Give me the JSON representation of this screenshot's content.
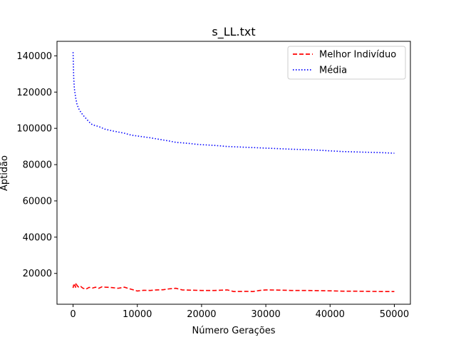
{
  "chart_data": {
    "type": "line",
    "title": "s_LL.txt",
    "xlabel": "Número Gerações",
    "ylabel": "Aptidão",
    "xlim": [
      -2500,
      52500
    ],
    "ylim": [
      3000,
      148000
    ],
    "xticks": [
      0,
      10000,
      20000,
      30000,
      40000,
      50000
    ],
    "yticks": [
      20000,
      40000,
      60000,
      80000,
      100000,
      120000,
      140000
    ],
    "grid": false,
    "legend_position": "top-right",
    "series": [
      {
        "name": "Melhor Indivíduo",
        "color": "#ff0000",
        "style": "dashed",
        "points": [
          [
            0,
            12000
          ],
          [
            100,
            13800
          ],
          [
            200,
            12600
          ],
          [
            300,
            13500
          ],
          [
            400,
            12200
          ],
          [
            500,
            14000
          ],
          [
            700,
            13000
          ],
          [
            900,
            12300
          ],
          [
            1200,
            12800
          ],
          [
            1500,
            11900
          ],
          [
            2000,
            11300
          ],
          [
            2500,
            12300
          ],
          [
            3000,
            11900
          ],
          [
            3500,
            12400
          ],
          [
            4000,
            11800
          ],
          [
            4500,
            12600
          ],
          [
            5000,
            12400
          ],
          [
            6000,
            12200
          ],
          [
            7000,
            11800
          ],
          [
            8000,
            12400
          ],
          [
            9000,
            11300
          ],
          [
            10000,
            10300
          ],
          [
            11000,
            10700
          ],
          [
            12000,
            10600
          ],
          [
            13000,
            10900
          ],
          [
            14000,
            11000
          ],
          [
            15000,
            11500
          ],
          [
            16000,
            11800
          ],
          [
            17000,
            10900
          ],
          [
            18000,
            10800
          ],
          [
            20000,
            10600
          ],
          [
            22000,
            10600
          ],
          [
            24000,
            10900
          ],
          [
            25000,
            10000
          ],
          [
            27000,
            10100
          ],
          [
            28000,
            10000
          ],
          [
            29000,
            10600
          ],
          [
            30000,
            10900
          ],
          [
            32000,
            10800
          ],
          [
            34000,
            10600
          ],
          [
            36000,
            10600
          ],
          [
            38000,
            10500
          ],
          [
            40000,
            10400
          ],
          [
            42000,
            10200
          ],
          [
            44000,
            10200
          ],
          [
            46000,
            10100
          ],
          [
            48000,
            10000
          ],
          [
            50000,
            10000
          ]
        ]
      },
      {
        "name": "Média",
        "color": "#0000ff",
        "style": "dotted",
        "points": [
          [
            0,
            142000
          ],
          [
            50,
            135000
          ],
          [
            100,
            128000
          ],
          [
            200,
            122000
          ],
          [
            400,
            117000
          ],
          [
            600,
            113500
          ],
          [
            800,
            111500
          ],
          [
            1000,
            110000
          ],
          [
            1500,
            107500
          ],
          [
            2000,
            105500
          ],
          [
            2500,
            103500
          ],
          [
            3000,
            102000
          ],
          [
            4000,
            101000
          ],
          [
            5000,
            99500
          ],
          [
            6000,
            98700
          ],
          [
            7000,
            98000
          ],
          [
            8000,
            97300
          ],
          [
            9000,
            96300
          ],
          [
            10000,
            95800
          ],
          [
            11000,
            95300
          ],
          [
            12000,
            94800
          ],
          [
            13000,
            94200
          ],
          [
            14000,
            93600
          ],
          [
            15000,
            93000
          ],
          [
            16000,
            92300
          ],
          [
            17000,
            92000
          ],
          [
            18000,
            91700
          ],
          [
            19000,
            91300
          ],
          [
            20000,
            91000
          ],
          [
            22000,
            90600
          ],
          [
            24000,
            90000
          ],
          [
            26000,
            89700
          ],
          [
            28000,
            89400
          ],
          [
            30000,
            89100
          ],
          [
            32000,
            88800
          ],
          [
            34000,
            88500
          ],
          [
            36000,
            88300
          ],
          [
            38000,
            88000
          ],
          [
            40000,
            87600
          ],
          [
            42000,
            87200
          ],
          [
            44000,
            87000
          ],
          [
            46000,
            86800
          ],
          [
            48000,
            86600
          ],
          [
            50000,
            86300
          ]
        ]
      }
    ]
  }
}
